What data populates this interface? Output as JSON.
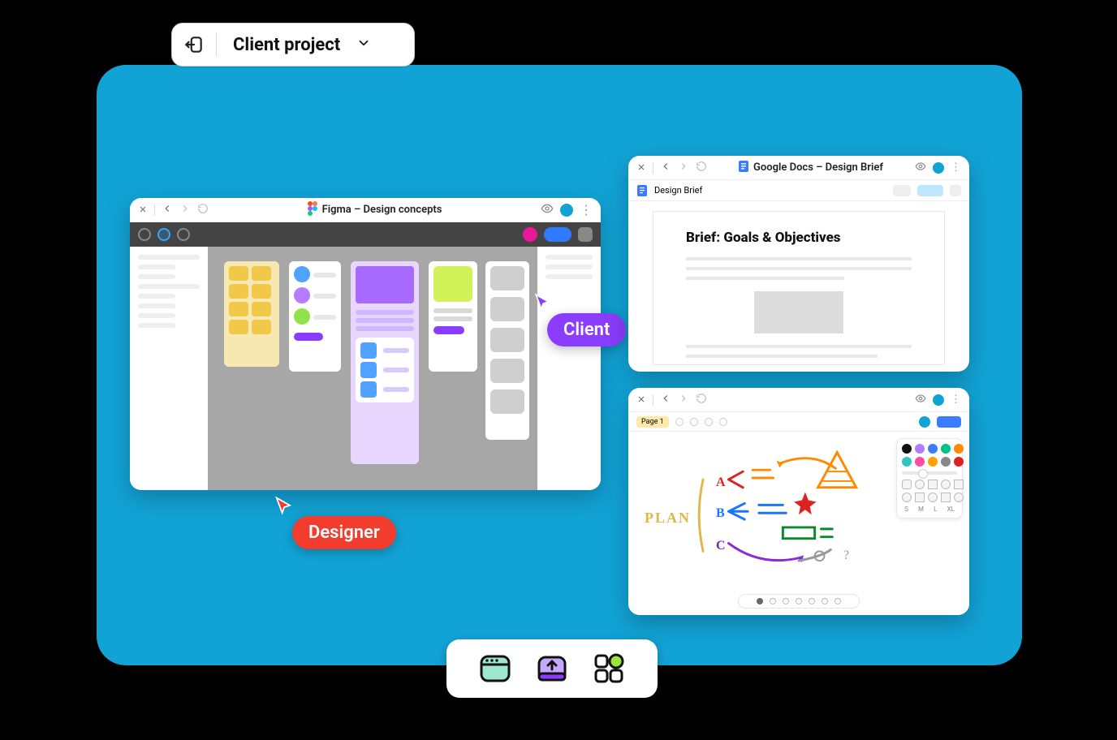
{
  "canvas": {
    "bg": "#12a3d6",
    "radius": 36
  },
  "project_pill": {
    "title": "Client project"
  },
  "figma": {
    "tab_title": "Figma – Design concepts",
    "accent_dot": "#12a3d6",
    "toolbar": {
      "chips": [
        "#e81899",
        "#2f7bff",
        "#888888"
      ]
    }
  },
  "gdocs": {
    "tab_title": "Google Docs – Design Brief",
    "doc_tab": "Design Brief",
    "heading": "Brief: Goals & Objectives"
  },
  "whiteboard": {
    "page_label": "Page 1",
    "plan_label": "PLAN",
    "letters": {
      "a": "A",
      "b": "B",
      "c": "C"
    },
    "palette_colors": [
      "#111111",
      "#b37bff",
      "#3a7bff",
      "#00c389",
      "#ff8a00",
      "#30c4c4",
      "#ff4da6",
      "#ffa200",
      "#888888",
      "#d22"
    ],
    "size_labels": [
      "S",
      "M",
      "L",
      "XL"
    ],
    "pager_count": 7,
    "pager_active": 0
  },
  "cursors": {
    "designer": {
      "label": "Designer",
      "color": "#f23c2e"
    },
    "client": {
      "label": "Client",
      "color": "#8a3dff"
    }
  },
  "dock": {
    "items": [
      {
        "name": "window-app-icon",
        "fill": "#9fe8d0",
        "stroke": "#111"
      },
      {
        "name": "upload-app-icon",
        "fill": "#a36bff",
        "stroke": "#111"
      },
      {
        "name": "apps-grid-icon",
        "fill": "#ffffff",
        "stroke": "#111",
        "accent": "#9be63b"
      }
    ]
  }
}
